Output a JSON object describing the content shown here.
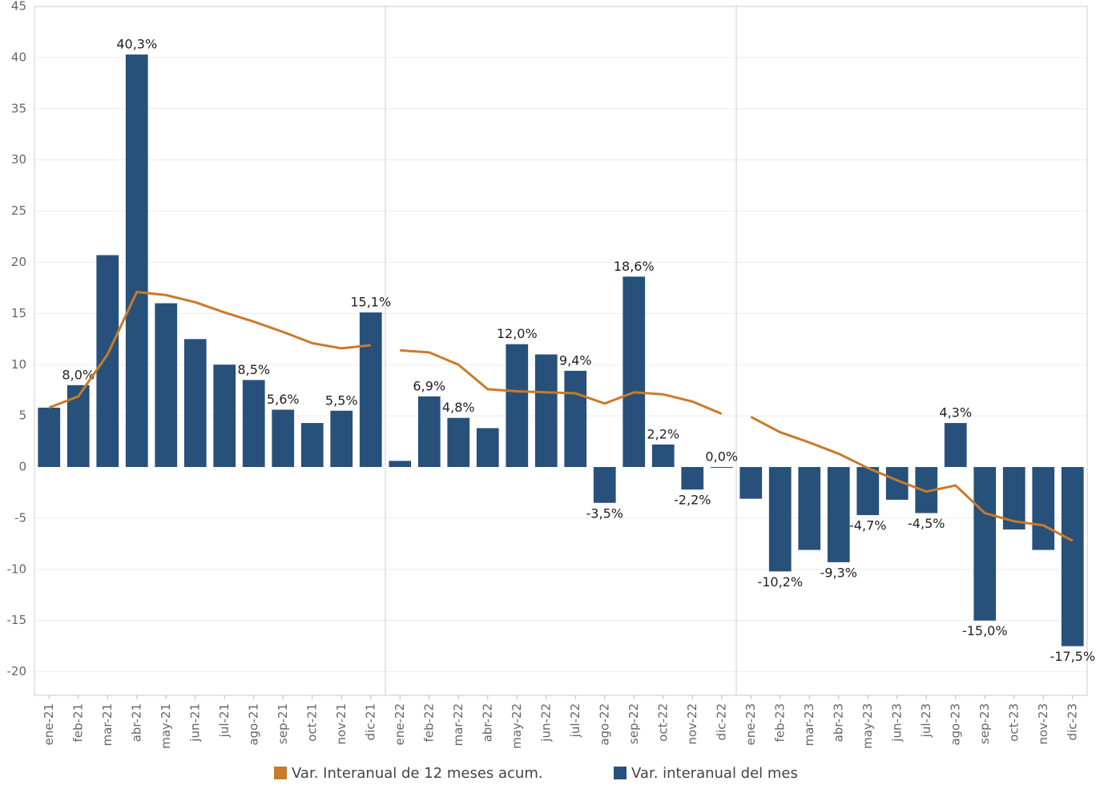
{
  "chart_data": {
    "type": "bar_line",
    "categories": [
      "ene-21",
      "feb-21",
      "mar-21",
      "abr-21",
      "may-21",
      "jun-21",
      "jul-21",
      "ago-21",
      "sep-21",
      "oct-21",
      "nov-21",
      "dic-21",
      "ene-22",
      "feb-22",
      "mar-22",
      "abr-22",
      "may-22",
      "jun-22",
      "jul-22",
      "ago-22",
      "sep-22",
      "oct-22",
      "nov-22",
      "dic-22",
      "ene-23",
      "feb-23",
      "mar-23",
      "abr-23",
      "may-23",
      "jun-23",
      "jul-23",
      "ago-23",
      "sep-23",
      "oct-23",
      "nov-23",
      "dic-23"
    ],
    "series": [
      {
        "name": "Var. Interanual de 12 meses acum.",
        "type": "line",
        "color": "#c97a2a",
        "values": [
          5.8,
          6.9,
          11.0,
          17.1,
          16.8,
          16.1,
          15.1,
          14.2,
          13.2,
          12.1,
          11.6,
          11.9,
          11.4,
          11.2,
          10.0,
          7.6,
          7.4,
          7.3,
          7.2,
          6.2,
          7.3,
          7.1,
          6.4,
          5.2,
          4.9,
          3.4,
          2.4,
          1.3,
          -0.1,
          -1.3,
          -2.4,
          -1.8,
          -4.5,
          -5.3,
          -5.7,
          -7.2
        ]
      },
      {
        "name": "Var. interanual del mes",
        "type": "bar",
        "color": "#27517a",
        "values": [
          5.8,
          8.0,
          20.7,
          40.3,
          16.0,
          12.5,
          10.0,
          8.5,
          5.6,
          4.3,
          5.5,
          15.1,
          0.6,
          6.9,
          4.8,
          3.8,
          12.0,
          11.0,
          9.4,
          -3.5,
          18.6,
          2.2,
          -2.2,
          0.0,
          -3.1,
          -10.2,
          -8.1,
          -9.3,
          -4.7,
          -3.2,
          -4.5,
          4.3,
          -15.0,
          -6.1,
          -8.1,
          -17.5
        ],
        "value_labels": [
          null,
          "8,0%",
          null,
          "40,3%",
          null,
          null,
          null,
          "8,5%",
          "5,6%",
          null,
          "5,5%",
          "15,1%",
          null,
          "6,9%",
          "4,8%",
          null,
          "12,0%",
          null,
          "9,4%",
          "-3,5%",
          "18,6%",
          "2,2%",
          "-2,2%",
          "0,0%",
          null,
          "-10,2%",
          null,
          "-9,3%",
          "-4,7%",
          null,
          "-4,5%",
          "4,3%",
          "-15,0%",
          null,
          null,
          "-17,5%"
        ]
      }
    ],
    "ylim": [
      -22.3,
      45
    ],
    "yticks": [
      -20,
      -15,
      -10,
      -5,
      0,
      5,
      10,
      15,
      20,
      25,
      30,
      35,
      40,
      45
    ],
    "grid": true
  }
}
